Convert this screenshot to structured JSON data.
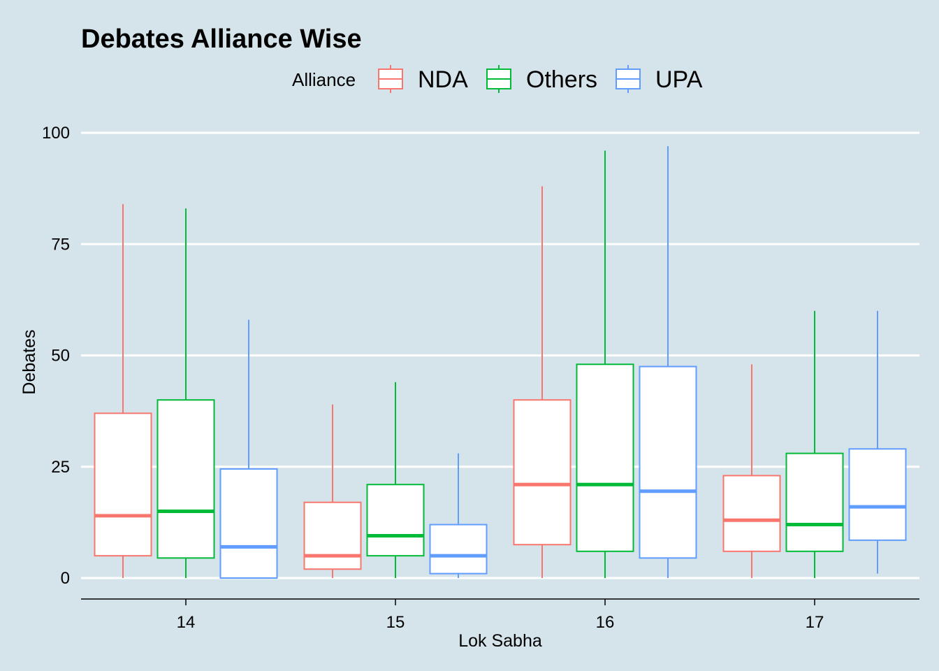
{
  "chart_data": {
    "type": "boxplot",
    "title": "Debates Alliance Wise",
    "xlabel": "Lok Sabha",
    "ylabel": "Debates",
    "categories": [
      "14",
      "15",
      "16",
      "17"
    ],
    "ylim": [
      -5,
      105
    ],
    "yticks": [
      0,
      25,
      50,
      75,
      100
    ],
    "grid": "horizontal major lines",
    "legend": {
      "title": "Alliance",
      "position": "top"
    },
    "series": [
      {
        "name": "NDA",
        "color": "#f8766d",
        "boxes": [
          {
            "min": 0,
            "q1": 5,
            "median": 14,
            "q3": 37,
            "max": 84
          },
          {
            "min": 0,
            "q1": 2,
            "median": 5,
            "q3": 17,
            "max": 39
          },
          {
            "min": 0,
            "q1": 7.5,
            "median": 21,
            "q3": 40,
            "max": 88
          },
          {
            "min": 0,
            "q1": 6,
            "median": 13,
            "q3": 23,
            "max": 48
          }
        ]
      },
      {
        "name": "Others",
        "color": "#00ba38",
        "boxes": [
          {
            "min": 0,
            "q1": 4.5,
            "median": 15,
            "q3": 40,
            "max": 83
          },
          {
            "min": 0,
            "q1": 5,
            "median": 9.5,
            "q3": 21,
            "max": 44
          },
          {
            "min": 0,
            "q1": 6,
            "median": 21,
            "q3": 48,
            "max": 96
          },
          {
            "min": 0,
            "q1": 6,
            "median": 12,
            "q3": 28,
            "max": 60
          }
        ]
      },
      {
        "name": "UPA",
        "color": "#619cff",
        "boxes": [
          {
            "min": 0,
            "q1": 0,
            "median": 7,
            "q3": 24.5,
            "max": 58
          },
          {
            "min": 0,
            "q1": 1,
            "median": 5,
            "q3": 12,
            "max": 28
          },
          {
            "min": 0,
            "q1": 4.5,
            "median": 19.5,
            "q3": 47.5,
            "max": 97
          },
          {
            "min": 1,
            "q1": 8.5,
            "median": 16,
            "q3": 29,
            "max": 60
          }
        ]
      }
    ]
  }
}
